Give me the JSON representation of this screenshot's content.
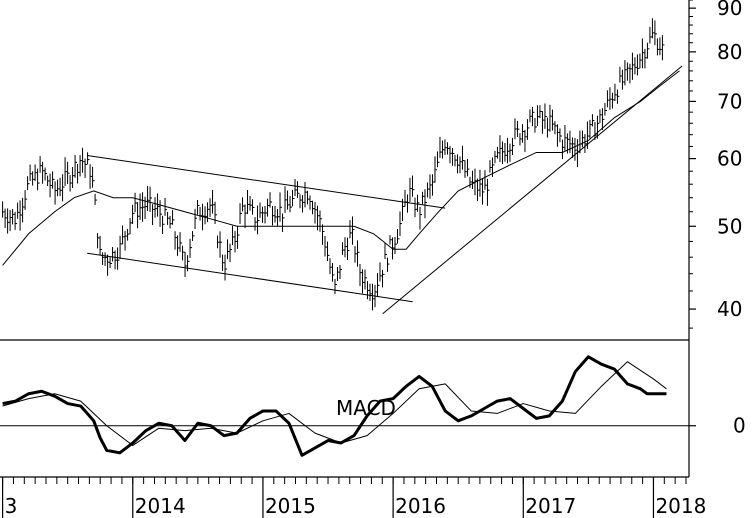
{
  "chart_data": [
    {
      "type": "line",
      "panel": "price",
      "scale": "log",
      "ylim": [
        37,
        92
      ],
      "yticks": [
        "90",
        "80",
        "70",
        "60",
        "50",
        "40"
      ],
      "ytick_values": [
        90,
        80,
        70,
        60,
        50,
        40
      ],
      "xlim": [
        2012.98,
        2018.25
      ],
      "xticks": [
        "3",
        "2014",
        "2015",
        "2016",
        "2017",
        "2018"
      ],
      "xtick_values": [
        2013.0,
        2014.0,
        2015.0,
        2016.0,
        2017.0,
        2018.0
      ],
      "series": [
        {
          "style": "bars",
          "x": [
            2013.0,
            2013.1,
            2013.2,
            2013.3,
            2013.4,
            2013.5,
            2013.6,
            2013.68,
            2013.75,
            2013.82,
            2013.9,
            2014.0,
            2014.1,
            2014.2,
            2014.3,
            2014.4,
            2014.5,
            2014.6,
            2014.7,
            2014.78,
            2014.85,
            2014.95,
            2015.05,
            2015.15,
            2015.25,
            2015.35,
            2015.45,
            2015.55,
            2015.62,
            2015.68,
            2015.75,
            2015.85,
            2015.95,
            2016.05,
            2016.12,
            2016.2,
            2016.3,
            2016.4,
            2016.5,
            2016.6,
            2016.7,
            2016.8,
            2016.9,
            2017.0,
            2017.1,
            2017.2,
            2017.3,
            2017.4,
            2017.5,
            2017.6,
            2017.7,
            2017.8,
            2017.9,
            2018.0,
            2018.08
          ],
          "values": [
            52,
            51,
            56,
            58,
            55,
            57,
            60,
            58,
            46,
            46,
            47,
            52,
            53,
            52,
            50,
            45,
            52,
            53,
            45,
            48,
            53,
            51,
            53,
            52,
            54,
            55,
            50,
            42,
            47,
            49,
            44,
            42,
            46,
            50,
            55,
            52,
            56,
            63,
            60,
            56,
            55,
            60,
            63,
            65,
            67,
            66,
            63,
            62,
            64,
            67,
            72,
            75,
            79,
            84,
            80
          ]
        },
        {
          "style": "thin",
          "x": [
            2013.0,
            2013.2,
            2013.4,
            2013.55,
            2013.7,
            2013.85,
            2014.0,
            2014.2,
            2014.4,
            2014.6,
            2014.8,
            2015.0,
            2015.2,
            2015.4,
            2015.55,
            2015.7,
            2015.85,
            2016.0,
            2016.1,
            2016.2,
            2016.35,
            2016.5,
            2016.7,
            2016.9,
            2017.1,
            2017.3,
            2017.5,
            2017.7,
            2017.9,
            2018.05,
            2018.2
          ],
          "values": [
            45,
            49,
            52,
            54,
            55,
            54,
            54,
            53,
            52,
            51,
            50,
            50,
            50,
            50,
            50,
            50,
            49,
            47,
            47,
            49,
            52,
            55,
            57,
            59,
            61,
            61,
            63,
            67,
            70,
            73,
            76
          ]
        }
      ],
      "trendlines": [
        {
          "x": [
            2013.65,
            2016.4
          ],
          "values": [
            60.5,
            52.5
          ]
        },
        {
          "x": [
            2013.65,
            2016.15
          ],
          "values": [
            46.5,
            40.8
          ]
        },
        {
          "x": [
            2015.92,
            2018.22
          ],
          "values": [
            39.5,
            77
          ]
        }
      ]
    },
    {
      "type": "line",
      "panel": "macd",
      "title": "MACD",
      "ylim": [
        -2.0,
        3.4
      ],
      "yticks": [
        "0"
      ],
      "ytick_values": [
        0
      ],
      "xlim": [
        2012.98,
        2018.25
      ],
      "series": [
        {
          "style": "thick",
          "x": [
            2013.0,
            2013.1,
            2013.2,
            2013.3,
            2013.4,
            2013.5,
            2013.6,
            2013.7,
            2013.75,
            2013.8,
            2013.9,
            2014.0,
            2014.1,
            2014.2,
            2014.3,
            2014.4,
            2014.5,
            2014.6,
            2014.7,
            2014.8,
            2014.9,
            2015.0,
            2015.1,
            2015.2,
            2015.3,
            2015.4,
            2015.5,
            2015.6,
            2015.7,
            2015.8,
            2015.9,
            2016.0,
            2016.1,
            2016.2,
            2016.3,
            2016.4,
            2016.5,
            2016.6,
            2016.7,
            2016.8,
            2016.9,
            2017.0,
            2017.1,
            2017.2,
            2017.3,
            2017.4,
            2017.5,
            2017.6,
            2017.7,
            2017.8,
            2017.9,
            2017.95,
            2018.0,
            2018.05,
            2018.1
          ],
          "values": [
            0.9,
            1.0,
            1.3,
            1.4,
            1.2,
            0.9,
            0.8,
            0.2,
            -0.5,
            -1.0,
            -1.1,
            -0.7,
            -0.2,
            0.1,
            0.0,
            -0.6,
            0.1,
            0.0,
            -0.4,
            -0.3,
            0.3,
            0.6,
            0.6,
            0.1,
            -1.2,
            -0.9,
            -0.6,
            -0.7,
            -0.4,
            0.4,
            1.0,
            1.1,
            1.6,
            2.0,
            1.6,
            0.6,
            0.2,
            0.4,
            0.7,
            1.0,
            1.1,
            0.7,
            0.3,
            0.4,
            1.0,
            2.2,
            2.8,
            2.5,
            2.3,
            1.7,
            1.5,
            1.3,
            1.3,
            1.3,
            1.3
          ]
        },
        {
          "style": "thin",
          "x": [
            2013.0,
            2013.2,
            2013.4,
            2013.6,
            2013.8,
            2014.0,
            2014.2,
            2014.4,
            2014.6,
            2014.8,
            2015.0,
            2015.2,
            2015.4,
            2015.6,
            2015.8,
            2016.0,
            2016.2,
            2016.4,
            2016.6,
            2016.8,
            2017.0,
            2017.2,
            2017.4,
            2017.6,
            2017.8,
            2018.0,
            2018.1
          ],
          "values": [
            0.8,
            1.1,
            1.3,
            1.0,
            0.0,
            -0.8,
            -0.1,
            -0.2,
            -0.1,
            -0.3,
            0.2,
            0.5,
            -0.3,
            -0.7,
            -0.4,
            0.5,
            1.5,
            1.7,
            0.6,
            0.5,
            0.9,
            0.6,
            0.5,
            1.6,
            2.6,
            1.9,
            1.5
          ]
        }
      ],
      "zero_line": true
    }
  ]
}
